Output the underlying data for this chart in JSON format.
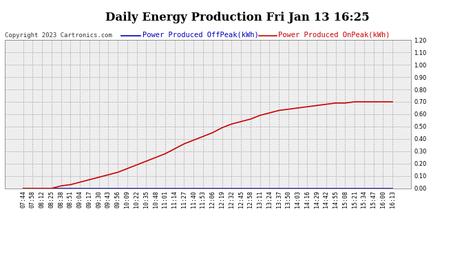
{
  "title": "Daily Energy Production Fri Jan 13 16:25",
  "copyright_text": "Copyright 2023 Cartronics.com",
  "legend_offpeak": "Power Produced OffPeak(kWh)",
  "legend_onpeak": "Power Produced OnPeak(kWh)",
  "offpeak_color": "#0000bb",
  "onpeak_color": "#cc0000",
  "background_color": "#ffffff",
  "plot_background": "#eeeeee",
  "grid_color": "#aaaaaa",
  "ylim": [
    0.0,
    1.2
  ],
  "yticks": [
    0.0,
    0.1,
    0.2,
    0.3,
    0.4,
    0.5,
    0.6,
    0.7,
    0.8,
    0.9,
    1.0,
    1.1,
    1.2
  ],
  "x_labels": [
    "07:44",
    "07:58",
    "08:12",
    "08:25",
    "08:38",
    "08:51",
    "09:04",
    "09:17",
    "09:30",
    "09:43",
    "09:56",
    "10:09",
    "10:22",
    "10:35",
    "10:48",
    "11:01",
    "11:14",
    "11:27",
    "11:40",
    "11:53",
    "12:06",
    "12:19",
    "12:32",
    "12:45",
    "12:58",
    "13:11",
    "13:24",
    "13:37",
    "13:50",
    "14:03",
    "14:16",
    "14:29",
    "14:42",
    "14:55",
    "15:08",
    "15:21",
    "15:34",
    "15:47",
    "16:00",
    "16:13"
  ],
  "onpeak_values": [
    0.0,
    0.0,
    0.0,
    0.0,
    0.02,
    0.03,
    0.05,
    0.07,
    0.09,
    0.11,
    0.13,
    0.16,
    0.19,
    0.22,
    0.25,
    0.28,
    0.32,
    0.36,
    0.39,
    0.42,
    0.45,
    0.49,
    0.52,
    0.54,
    0.56,
    0.59,
    0.61,
    0.63,
    0.64,
    0.65,
    0.66,
    0.67,
    0.68,
    0.69,
    0.69,
    0.7,
    0.7,
    0.7,
    0.7,
    0.7
  ],
  "offpeak_values": [
    0.0,
    0.0,
    0.0,
    0.0,
    0.0,
    0.0,
    0.0,
    0.0,
    0.0,
    0.0,
    0.0,
    0.0,
    0.0,
    0.0,
    0.0,
    0.0,
    0.0,
    0.0,
    0.0,
    0.0,
    0.0,
    0.0,
    0.0,
    0.0,
    0.0,
    0.0,
    0.0,
    0.0,
    0.0,
    0.0,
    0.0,
    0.0,
    0.0,
    0.0,
    0.0,
    0.0,
    0.0,
    0.0,
    0.0,
    0.0
  ],
  "title_fontsize": 12,
  "copyright_fontsize": 6.5,
  "legend_fontsize": 7.5,
  "tick_fontsize": 6,
  "line_width": 1.2
}
